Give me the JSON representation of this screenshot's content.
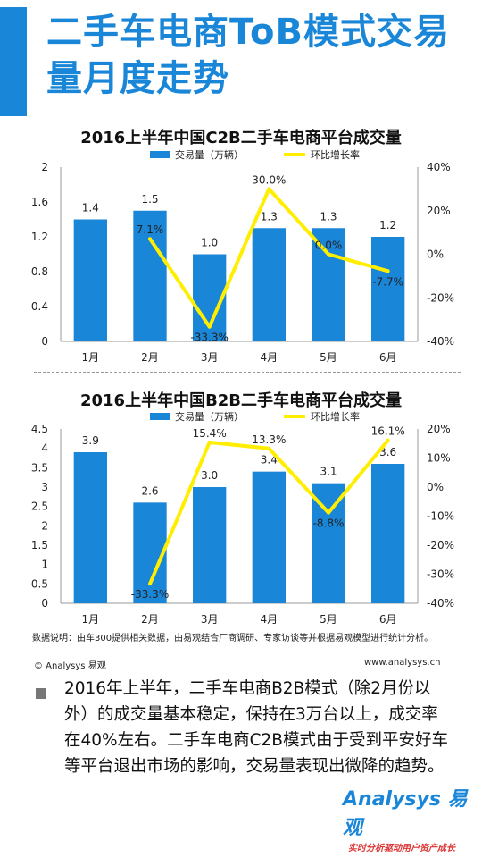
{
  "page": {
    "title": "二手车电商ToB模式交易量月度走势",
    "source_note": "数据说明：由车300提供相关数据，由易观结合厂商调研、专家访谈等并根据易观模型进行统计分析。",
    "copyright": "© Analysys 易观",
    "website": "www.analysys.cn",
    "body_text": "2016年上半年，二手车电商B2B模式（除2月份以外）的成交量基本稳定，保持在3万台以上，成交率在40%左右。二手车电商C2B模式由于受到平安好车等平台退出市场的影响，交易量表现出微降的趋势。",
    "brand_logo": "Analysys 易观",
    "brand_tagline": "实时分析驱动用户资产成长"
  },
  "colors": {
    "title": "#1a86d8",
    "bar": "#1a86d8",
    "line": "#ffee00",
    "bullet": "#777777"
  },
  "chart_data": [
    {
      "type": "bar",
      "title": "2016上半年中国C2B二手车电商平台成交量",
      "categories": [
        "1月",
        "2月",
        "3月",
        "4月",
        "5月",
        "6月"
      ],
      "series": [
        {
          "name": "交易量（万辆）",
          "type": "bar",
          "axis": "left",
          "values": [
            1.4,
            1.5,
            1.0,
            1.3,
            1.3,
            1.2
          ],
          "labels": [
            "1.4",
            "1.5",
            "1.0",
            "1.3",
            "1.3",
            "1.2"
          ]
        },
        {
          "name": "环比增长率",
          "type": "line",
          "axis": "right",
          "values": [
            null,
            7.1,
            -33.3,
            30.0,
            0.0,
            -7.7
          ],
          "labels": [
            "",
            "7.1%",
            "-33.3%",
            "30.0%",
            "0.0%",
            "-7.7%"
          ]
        }
      ],
      "left_axis": {
        "min": 0,
        "max": 2,
        "ticks": [
          "0",
          "0.4",
          "0.8",
          "1.2",
          "1.6",
          "2"
        ]
      },
      "right_axis": {
        "min": -40,
        "max": 40,
        "ticks": [
          "-40%",
          "-20%",
          "0%",
          "20%",
          "40%"
        ]
      },
      "legend": "top-center"
    },
    {
      "type": "bar",
      "title": "2016上半年中国B2B二手车电商平台成交量",
      "categories": [
        "1月",
        "2月",
        "3月",
        "4月",
        "5月",
        "6月"
      ],
      "series": [
        {
          "name": "交易量（万辆）",
          "type": "bar",
          "axis": "left",
          "values": [
            3.9,
            2.6,
            3.0,
            3.4,
            3.1,
            3.6
          ],
          "labels": [
            "3.9",
            "2.6",
            "3.0",
            "3.4",
            "3.1",
            "3.6"
          ]
        },
        {
          "name": "环比增长率",
          "type": "line",
          "axis": "right",
          "values": [
            null,
            -33.3,
            15.4,
            13.3,
            -8.8,
            16.1
          ],
          "labels": [
            "",
            "-33.3%",
            "15.4%",
            "13.3%",
            "-8.8%",
            "16.1%"
          ]
        }
      ],
      "left_axis": {
        "min": 0,
        "max": 4.5,
        "ticks": [
          "0",
          "0.5",
          "1",
          "1.5",
          "2",
          "2.5",
          "3",
          "3.5",
          "4",
          "4.5"
        ]
      },
      "right_axis": {
        "min": -40,
        "max": 20,
        "ticks": [
          "-40%",
          "-30%",
          "-20%",
          "-10%",
          "0%",
          "10%",
          "20%"
        ]
      },
      "legend": "top-center"
    }
  ]
}
